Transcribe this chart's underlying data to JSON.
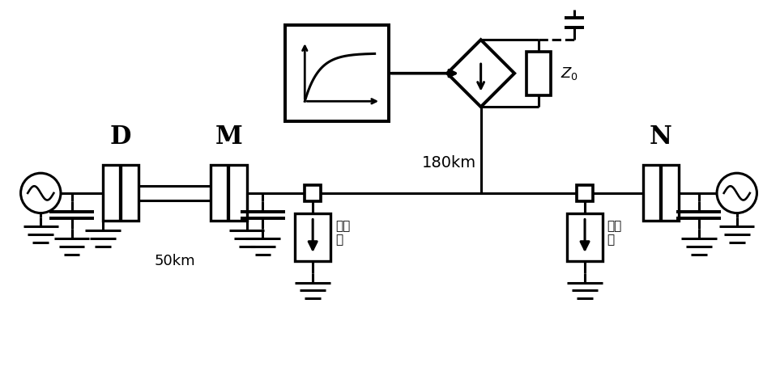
{
  "fig_width": 9.63,
  "fig_height": 4.59,
  "dpi": 100,
  "bg_color": "#ffffff",
  "line_color": "#000000",
  "lw": 2.2,
  "label_D": "D",
  "label_M": "M",
  "label_N": "N",
  "label_50km": "50km",
  "label_180km": "180km",
  "label_Z0": "$Z_0$",
  "label_arrester": "避雷器"
}
